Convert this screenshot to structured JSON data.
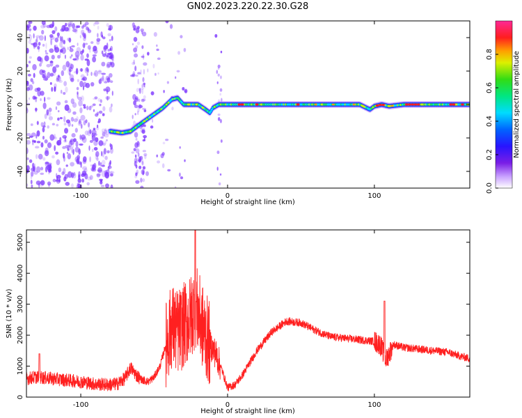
{
  "title": "GN02.2023.220.22.30.G28",
  "colors": {
    "snr_line": "#ff2020",
    "tfa_scatter": "#7a32ff",
    "background": "#ffffff"
  },
  "chart_data": [
    {
      "type": "heatmap",
      "xlabel": "Height of straight line (km)",
      "ylabel": "Frequency (Hz)",
      "xlim": [
        -137,
        165
      ],
      "ylim": [
        -50,
        50
      ],
      "xticks": [
        -100,
        0,
        100
      ],
      "yticks": [
        -40,
        -20,
        0,
        20,
        40
      ],
      "colorbar": {
        "label": "Normalized spectral amplitude",
        "range": [
          0,
          1
        ],
        "ticks": [
          "0.0",
          "0.2",
          "0.4",
          "0.6",
          "0.8"
        ],
        "colormap": "rainbow (purple - blue - cyan - green - yellow - red - magenta)"
      },
      "track": {
        "x": [
          -80,
          -72,
          -66,
          -60,
          -52,
          -44,
          -38,
          -34,
          -30,
          -20,
          -15,
          -12,
          -10,
          -6,
          0,
          10,
          30,
          50,
          70,
          80,
          90,
          97,
          100,
          105,
          110,
          120,
          140,
          165
        ],
        "y": [
          -16,
          -17,
          -16,
          -12,
          -7,
          -2,
          3,
          4,
          0,
          0,
          -3,
          -5,
          -2,
          0,
          0,
          0,
          0,
          0,
          0,
          0,
          0,
          -3,
          -1,
          0,
          -1,
          0,
          0,
          0
        ]
      }
    },
    {
      "type": "line",
      "xlabel": "Height of straight line (km)",
      "ylabel": "SNR (10 * v/v)",
      "xlim": [
        -137,
        165
      ],
      "ylim": [
        0,
        5400
      ],
      "xticks": [
        -100,
        0,
        100
      ],
      "yticks": [
        0,
        1000,
        2000,
        3000,
        4000,
        5000
      ],
      "x": [
        -137,
        -130,
        -120,
        -110,
        -100,
        -90,
        -80,
        -75,
        -70,
        -66,
        -62,
        -58,
        -54,
        -50,
        -46,
        -42,
        -38,
        -34,
        -30,
        -26,
        -24,
        -22,
        -20,
        -18,
        -15,
        -12,
        -8,
        -4,
        0,
        5,
        10,
        20,
        30,
        40,
        50,
        60,
        70,
        80,
        90,
        100,
        104,
        108,
        110,
        113,
        120,
        130,
        140,
        150,
        160,
        165
      ],
      "y": [
        600,
        650,
        600,
        550,
        500,
        420,
        400,
        430,
        600,
        950,
        700,
        550,
        500,
        650,
        1000,
        1700,
        2300,
        2100,
        2300,
        2500,
        2700,
        3000,
        2700,
        2400,
        2000,
        1700,
        1400,
        900,
        300,
        400,
        700,
        1500,
        2100,
        2450,
        2400,
        2150,
        1950,
        1900,
        1850,
        1800,
        1700,
        1200,
        1400,
        1700,
        1600,
        1550,
        1500,
        1450,
        1300,
        1250
      ]
    }
  ]
}
